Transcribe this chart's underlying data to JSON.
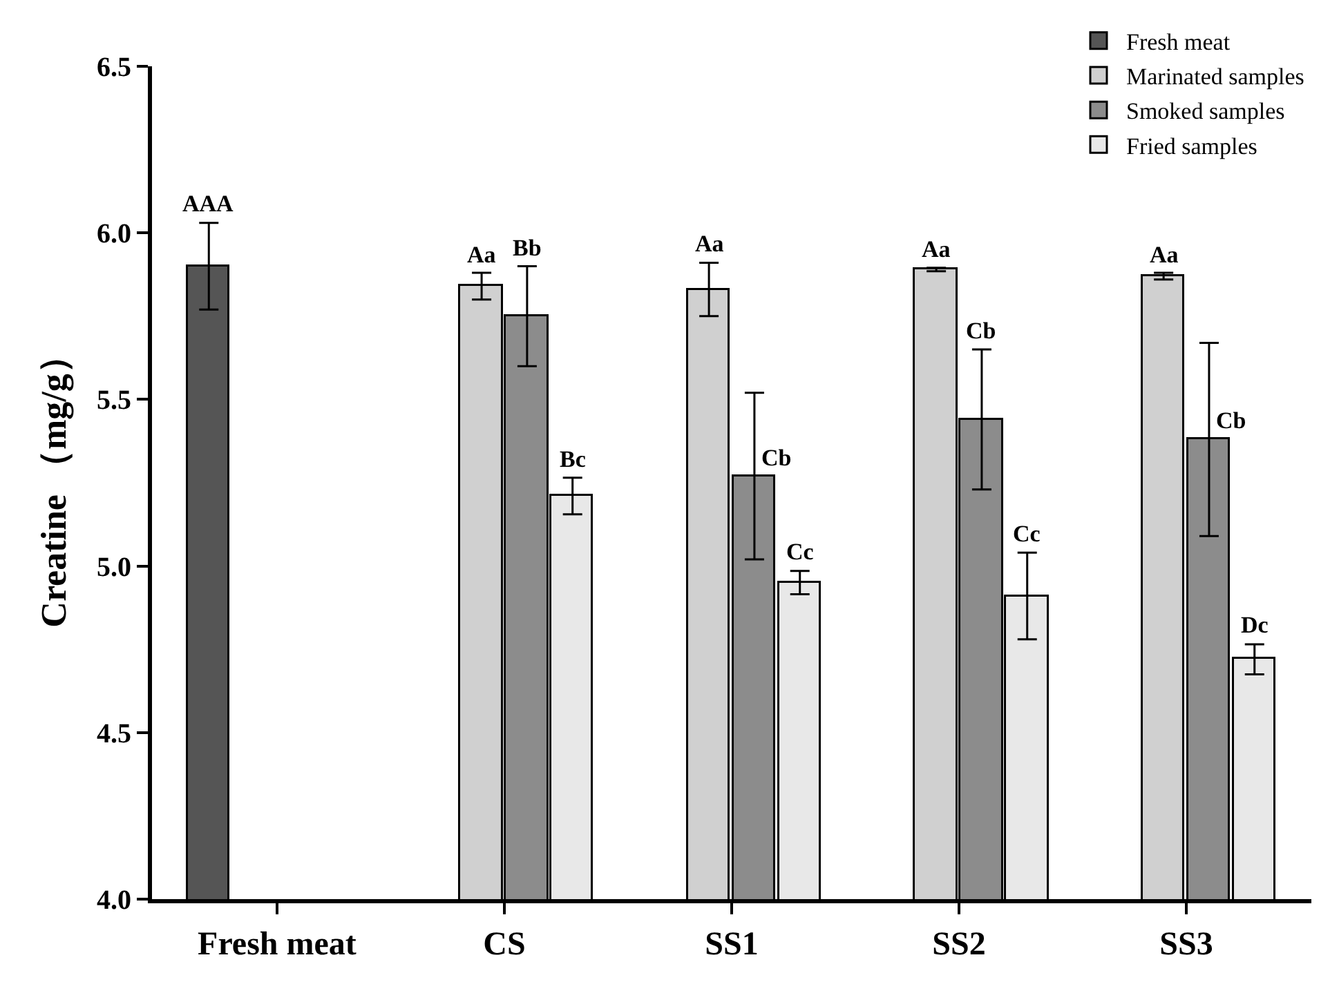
{
  "chart_data": {
    "type": "bar",
    "ylabel": "Creatine （mg/g）",
    "categories": [
      "Fresh meat",
      "CS",
      "SS1",
      "SS2",
      "SS3"
    ],
    "series": [
      {
        "name": "Fresh meat",
        "color": "#555555",
        "values": [
          5.9,
          null,
          null,
          null,
          null
        ],
        "errors": [
          0.13,
          null,
          null,
          null,
          null
        ],
        "value_labels": [
          "AAA",
          null,
          null,
          null,
          null
        ]
      },
      {
        "name": "Marinated samples",
        "color": "#d0d0d0",
        "values": [
          null,
          5.84,
          5.83,
          5.89,
          5.87
        ],
        "errors": [
          null,
          0.04,
          0.08,
          0.005,
          0.01
        ],
        "value_labels": [
          null,
          "Aa",
          "Aa",
          "Aa",
          "Aa"
        ]
      },
      {
        "name": "Smoked samples",
        "color": "#8c8c8c",
        "values": [
          null,
          5.75,
          5.27,
          5.44,
          5.38
        ],
        "errors": [
          null,
          0.15,
          0.25,
          0.21,
          0.29
        ],
        "value_labels": [
          null,
          "Bb",
          "Cb",
          "Cb",
          "Cb"
        ]
      },
      {
        "name": "Fried samples",
        "color": "#e8e8e8",
        "values": [
          null,
          5.21,
          4.95,
          4.91,
          4.72
        ],
        "errors": [
          null,
          0.055,
          0.035,
          0.13,
          0.045
        ],
        "value_labels": [
          null,
          "Bc",
          "Cc",
          "Cc",
          "Dc"
        ]
      }
    ],
    "ylim": [
      4.0,
      6.5
    ],
    "yticks": [
      {
        "value": 4.0,
        "label": "4.0"
      },
      {
        "value": 4.5,
        "label": "4.5"
      },
      {
        "value": 5.0,
        "label": "5.0"
      },
      {
        "value": 5.5,
        "label": "5.5"
      },
      {
        "value": 6.0,
        "label": "6.0"
      },
      {
        "value": 6.5,
        "label": "6.5"
      }
    ],
    "legend": "top right"
  }
}
